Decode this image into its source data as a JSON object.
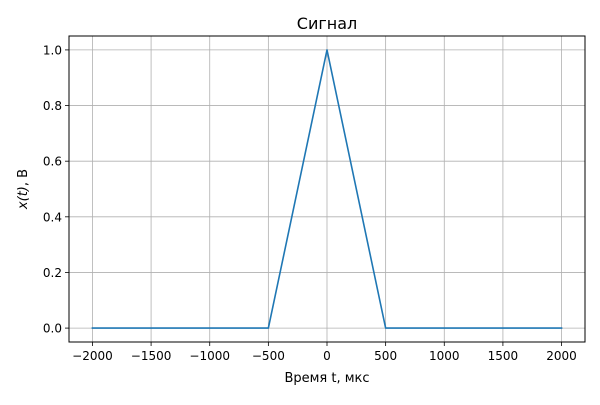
{
  "chart_data": {
    "type": "line",
    "title": "Сигнал",
    "xlabel": "Время t, мкс",
    "ylabel_math": "x(t)",
    "ylabel_suffix": ", В",
    "xlim": [
      -2200,
      2200
    ],
    "ylim": [
      -0.05,
      1.05
    ],
    "xticks": [
      -2000,
      -1500,
      -1000,
      -500,
      0,
      500,
      1000,
      1500,
      2000
    ],
    "xtick_labels": [
      "−2000",
      "−1500",
      "−1000",
      "−500",
      "0",
      "500",
      "1000",
      "1500",
      "2000"
    ],
    "yticks": [
      0.0,
      0.2,
      0.4,
      0.6,
      0.8,
      1.0
    ],
    "ytick_labels": [
      "0.0",
      "0.2",
      "0.4",
      "0.6",
      "0.8",
      "1.0"
    ],
    "grid": true,
    "series": [
      {
        "color": "#1f77b4",
        "x": [
          -2000,
          -500,
          0,
          500,
          2000
        ],
        "y": [
          0,
          0,
          1,
          0,
          0
        ]
      }
    ]
  }
}
